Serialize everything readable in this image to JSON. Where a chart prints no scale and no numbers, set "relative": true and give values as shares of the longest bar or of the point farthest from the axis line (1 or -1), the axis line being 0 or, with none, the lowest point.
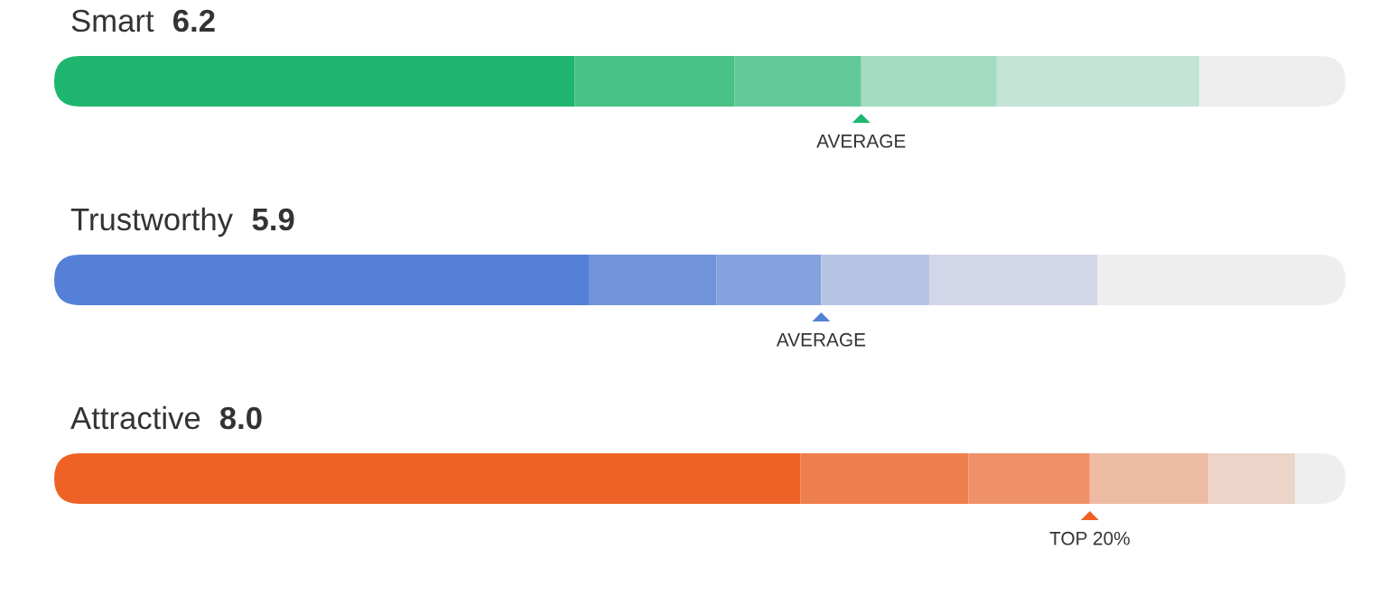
{
  "chart_data": [
    {
      "type": "bar",
      "orientation": "horizontal",
      "stacked": true,
      "relative": true,
      "title": "Smart",
      "subtitle": "6.2",
      "categories": [
        null
      ],
      "series": [
        {
          "color": "#1eb66f",
          "values": [
            0.403
          ]
        },
        {
          "color": "#48c186",
          "values": [
            0.124
          ]
        },
        {
          "color": "#63c999",
          "values": [
            0.098
          ]
        },
        {
          "color": "#a3dcc1",
          "values": [
            0.105
          ]
        },
        {
          "color": "#c4e4d5",
          "values": [
            0.157
          ]
        },
        {
          "color": "#eeeeee",
          "values": [
            0.113
          ]
        }
      ],
      "annotations": [
        "AVERAGE"
      ]
    },
    {
      "type": "bar",
      "orientation": "horizontal",
      "stacked": true,
      "relative": true,
      "title": "Trustworthy",
      "subtitle": "5.9",
      "categories": [
        null
      ],
      "series": [
        {
          "color": "#5480d8",
          "values": [
            0.414
          ]
        },
        {
          "color": "#7294db",
          "values": [
            0.099
          ]
        },
        {
          "color": "#86a2de",
          "values": [
            0.081
          ]
        },
        {
          "color": "#b6c4e4",
          "values": [
            0.084
          ]
        },
        {
          "color": "#d1d7e8",
          "values": [
            0.13
          ]
        },
        {
          "color": "#eeeeee",
          "values": [
            0.192
          ]
        }
      ],
      "annotations": [
        "AVERAGE"
      ]
    },
    {
      "type": "bar",
      "orientation": "horizontal",
      "stacked": true,
      "relative": true,
      "title": "Attractive",
      "subtitle": "8.0",
      "categories": [
        null
      ],
      "series": [
        {
          "color": "#ee6325",
          "values": [
            0.578
          ]
        },
        {
          "color": "#ef7e4d",
          "values": [
            0.13
          ]
        },
        {
          "color": "#ef9168",
          "values": [
            0.094
          ]
        },
        {
          "color": "#eebba4",
          "values": [
            0.092
          ]
        },
        {
          "color": "#edd4c8",
          "values": [
            0.067
          ]
        },
        {
          "color": "#eeeeee",
          "values": [
            0.039
          ]
        }
      ],
      "annotations": [
        "TOP 20%"
      ]
    }
  ]
}
